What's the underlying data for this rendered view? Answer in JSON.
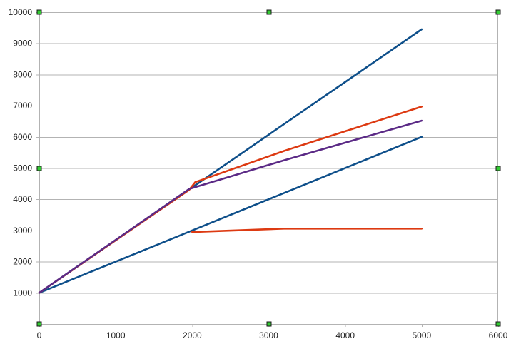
{
  "chart_data": {
    "type": "line",
    "title": "",
    "xlabel": "",
    "ylabel": "",
    "xlim": [
      0,
      6000
    ],
    "ylim": [
      0,
      10000
    ],
    "x_ticks": [
      0,
      1000,
      2000,
      3000,
      4000,
      5000,
      6000
    ],
    "y_ticks": [
      1000,
      2000,
      3000,
      4000,
      5000,
      6000,
      7000,
      8000,
      9000,
      10000
    ],
    "x_tick_labels": [
      "0",
      "1000",
      "2000",
      "3000",
      "4000",
      "5000",
      "6000"
    ],
    "y_tick_labels": [
      "1000",
      "2000",
      "3000",
      "4000",
      "5000",
      "6000",
      "7000",
      "8000",
      "9000",
      "10000"
    ],
    "grid": "horizontal",
    "legend": "none",
    "series": [
      {
        "color": "#0e4f8a",
        "points": [
          [
            0,
            1000
          ],
          [
            5000,
            9450
          ]
        ]
      },
      {
        "color": "#0e4f8a",
        "points": [
          [
            0,
            1000
          ],
          [
            5000,
            6000
          ]
        ]
      },
      {
        "color": "#dd3a12",
        "points": [
          [
            0,
            1000
          ],
          [
            1960,
            4300
          ],
          [
            2040,
            4550
          ],
          [
            3200,
            5550
          ],
          [
            5000,
            6970
          ]
        ]
      },
      {
        "color": "#5b2a86",
        "points": [
          [
            0,
            1000
          ],
          [
            1960,
            4330
          ],
          [
            3200,
            5250
          ],
          [
            5000,
            6520
          ]
        ]
      },
      {
        "color": "#dd3a12",
        "points": [
          [
            2000,
            2950
          ],
          [
            3200,
            3060
          ],
          [
            5000,
            3060
          ]
        ]
      }
    ],
    "selection_handles": true,
    "handle_color": "#33cc33"
  }
}
